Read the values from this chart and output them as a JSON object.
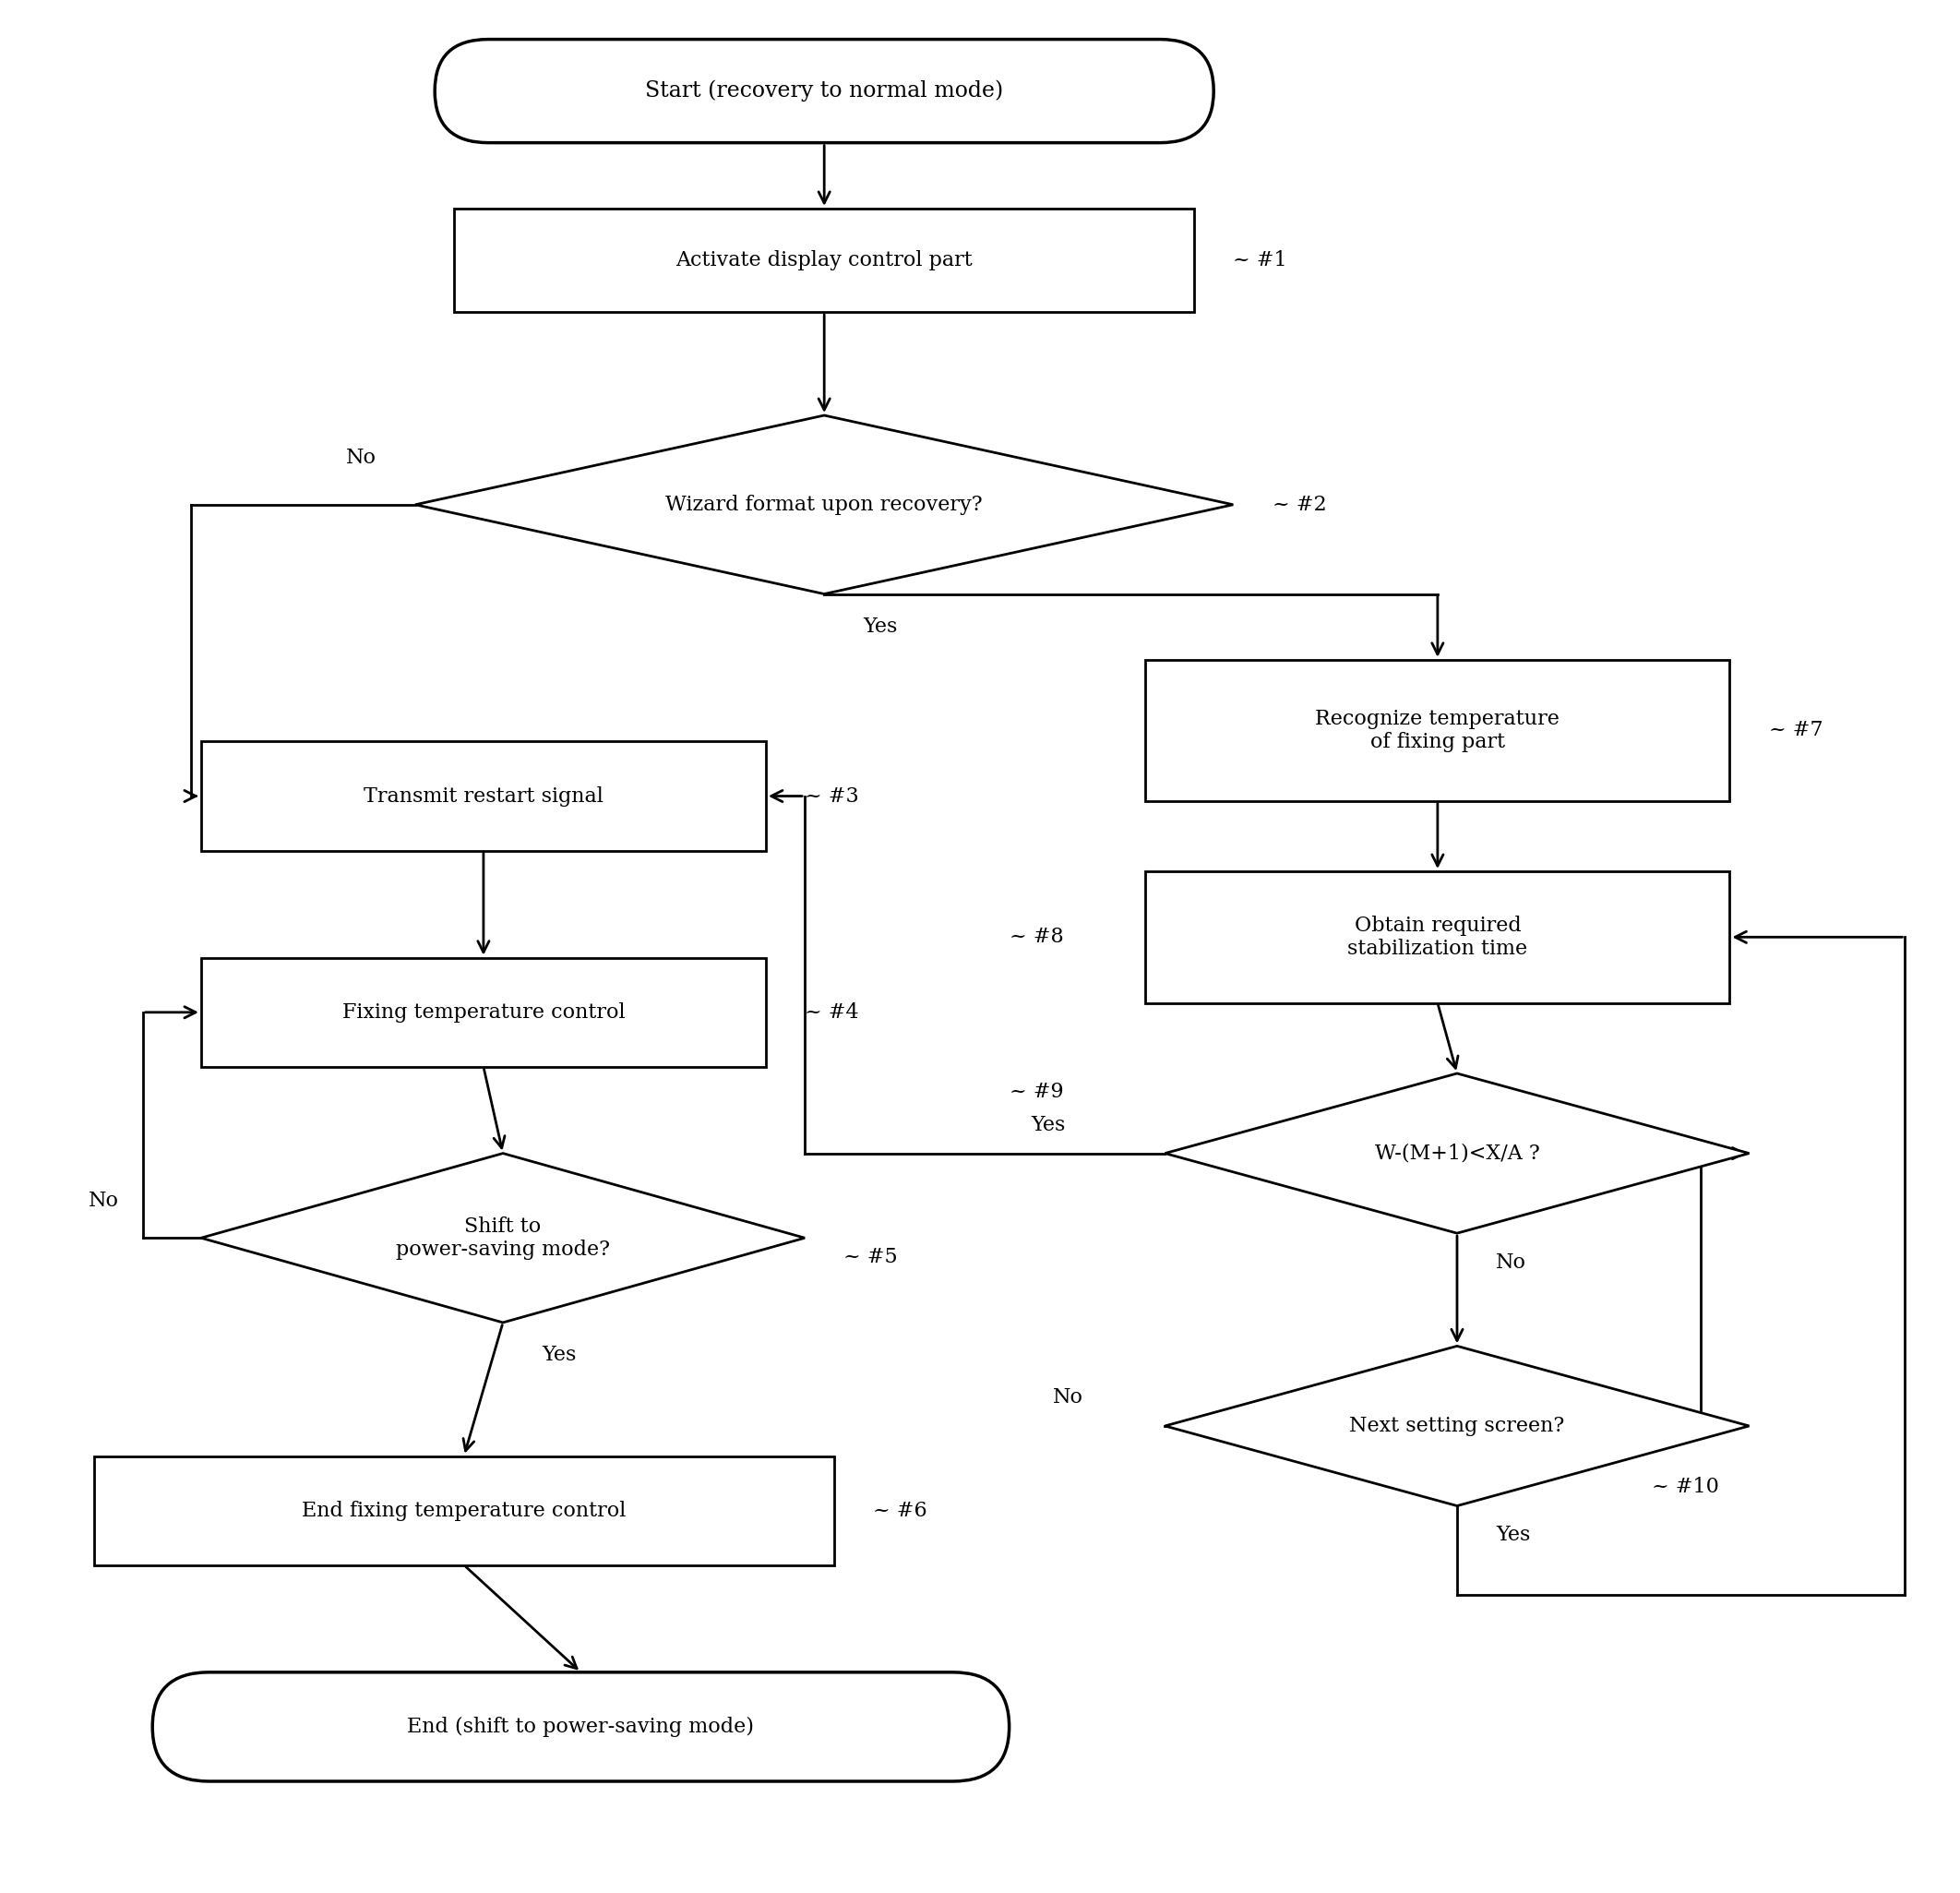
{
  "bg_color": "#ffffff",
  "line_color": "#000000",
  "text_color": "#000000",
  "font_size": 15,
  "S": [
    0.42,
    0.955,
    0.4,
    0.055
  ],
  "N1": [
    0.42,
    0.865,
    0.38,
    0.055
  ],
  "N2": [
    0.42,
    0.735,
    0.42,
    0.095
  ],
  "N7": [
    0.735,
    0.615,
    0.3,
    0.075
  ],
  "N8": [
    0.735,
    0.505,
    0.3,
    0.07
  ],
  "N9": [
    0.745,
    0.39,
    0.3,
    0.085
  ],
  "N10": [
    0.745,
    0.245,
    0.3,
    0.085
  ],
  "N3": [
    0.245,
    0.58,
    0.29,
    0.058
  ],
  "N4": [
    0.245,
    0.465,
    0.29,
    0.058
  ],
  "N5": [
    0.255,
    0.345,
    0.31,
    0.09
  ],
  "N6": [
    0.235,
    0.2,
    0.38,
    0.058
  ],
  "E": [
    0.295,
    0.085,
    0.44,
    0.058
  ],
  "labels": {
    "S": "Start (recovery to normal mode)",
    "N1": "Activate display control part",
    "N2": "Wizard format upon recovery?",
    "N7": "Recognize temperature\nof fixing part",
    "N8": "Obtain required\nstabilization time",
    "N9": "W-(M+1)<X/A ?",
    "N10": "Next setting screen?",
    "N3": "Transmit restart signal",
    "N4": "Fixing temperature control",
    "N5": "Shift to\npower-saving mode?",
    "N6": "End fixing temperature control",
    "E": "End (shift to power-saving mode)"
  },
  "refs": {
    "N1": "#1",
    "N2": "#2",
    "N7": "#7",
    "N8": "#8",
    "N9": "#9",
    "N10": "#10",
    "N3": "#3",
    "N4": "#4",
    "N5": "#5",
    "N6": "#6"
  }
}
